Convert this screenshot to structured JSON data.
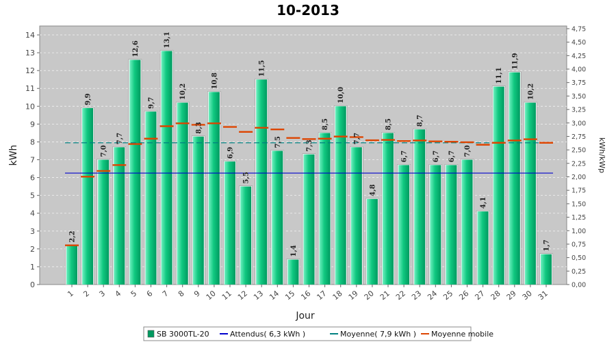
{
  "chart_data": {
    "type": "bar",
    "title": "10-2013",
    "xlabel": "Jour",
    "ylabel": "kWh",
    "y2label": "kWh/kWp",
    "ylim": [
      0,
      14.5
    ],
    "y2lim": [
      0,
      4.8
    ],
    "yticks": [
      0,
      1,
      2,
      3,
      4,
      5,
      6,
      7,
      8,
      9,
      10,
      11,
      12,
      13,
      14
    ],
    "y2ticks": [
      "0,00",
      "0,25",
      "0,50",
      "0,75",
      "1,00",
      "1,25",
      "1,50",
      "1,75",
      "2,00",
      "2,25",
      "2,50",
      "2,75",
      "3,00",
      "3,25",
      "3,50",
      "3,75",
      "4,00",
      "4,25",
      "4,50",
      "4,75"
    ],
    "grid": true,
    "legend_position": "bottom",
    "colors": {
      "plot_bg": "#c8c8c8",
      "bar_light": "#2ee6a0",
      "bar_dark": "#009a60",
      "attendus": "#0000cc",
      "moyenne": "#008080",
      "moyenne_mobile": "#dd4400"
    },
    "categories": [
      "1",
      "2",
      "3",
      "4",
      "5",
      "6",
      "7",
      "8",
      "9",
      "10",
      "11",
      "12",
      "13",
      "14",
      "15",
      "16",
      "17",
      "18",
      "19",
      "20",
      "21",
      "22",
      "23",
      "24",
      "25",
      "26",
      "27",
      "28",
      "29",
      "30",
      "31"
    ],
    "series": [
      {
        "name": "SB 3000TL-20",
        "type": "bar",
        "values": [
          2.2,
          9.9,
          7.0,
          7.7,
          12.6,
          9.7,
          13.1,
          10.2,
          8.3,
          10.8,
          6.9,
          5.5,
          11.5,
          7.5,
          1.4,
          7.3,
          8.5,
          10.0,
          7.7,
          4.8,
          8.5,
          6.7,
          8.7,
          6.7,
          6.7,
          7.0,
          4.1,
          11.1,
          11.9,
          10.2,
          1.7
        ],
        "labels": [
          "2,2",
          "9,9",
          "7,0",
          "7,7",
          "12,6",
          "9,7",
          "13,1",
          "10,2",
          "8,3",
          "10,8",
          "6,9",
          "5,5",
          "11,5",
          "7,5",
          "1,4",
          "7,3",
          "8,5",
          "10,0",
          "7,7",
          "4,8",
          "8,5",
          "6,7",
          "8,7",
          "6,7",
          "6,7",
          "7,0",
          "4,1",
          "11,1",
          "11,9",
          "10,2",
          "1,7"
        ]
      },
      {
        "name": "Attendus( 6,3 kWh )",
        "type": "hline",
        "value": 6.25
      },
      {
        "name": "Moyenne( 7,9 kWh )",
        "type": "hline",
        "value": 7.95
      },
      {
        "name": "Moyenne mobile",
        "type": "step",
        "values": [
          2.2,
          6.05,
          6.37,
          6.7,
          7.88,
          8.18,
          8.88,
          9.04,
          8.96,
          9.04,
          8.84,
          8.56,
          8.79,
          8.7,
          8.22,
          8.16,
          8.18,
          8.3,
          8.27,
          8.09,
          8.11,
          8.05,
          8.08,
          8.03,
          8.01,
          7.98,
          7.84,
          7.95,
          8.08,
          8.15,
          7.95
        ]
      }
    ]
  }
}
